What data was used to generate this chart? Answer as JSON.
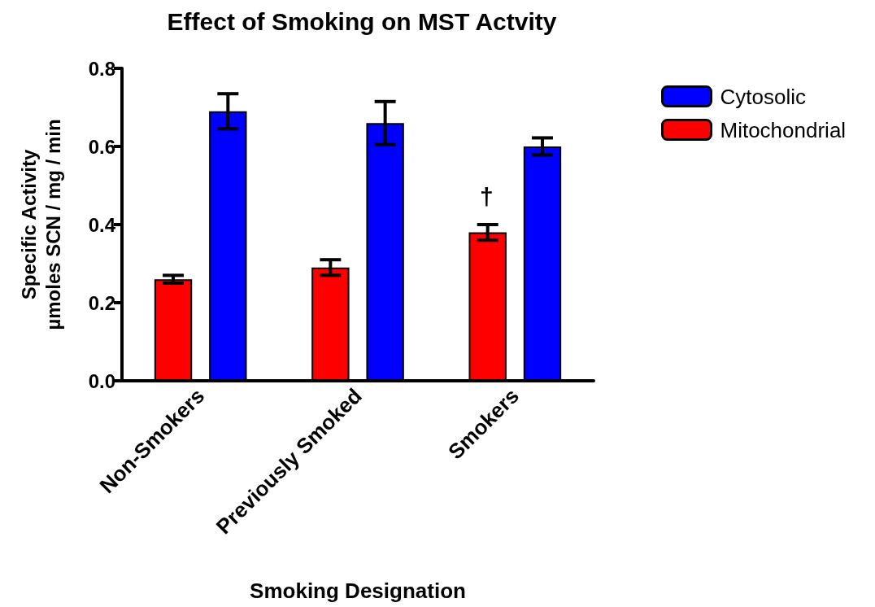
{
  "chart_data": {
    "type": "bar",
    "title": "Effect of Smoking on MST Actvity",
    "xlabel": "Smoking Designation",
    "ylabel": "Specific Activity\nµmoles SCN / mg / min",
    "categories": [
      "Non-Smokers",
      "Previously Smoked",
      "Smokers"
    ],
    "series": [
      {
        "name": "Mitochondrial",
        "color": "#ff0000",
        "values": [
          0.26,
          0.29,
          0.38
        ],
        "errors": [
          0.01,
          0.02,
          0.02
        ]
      },
      {
        "name": "Cytosolic",
        "color": "#0000ff",
        "values": [
          0.69,
          0.66,
          0.6
        ],
        "errors": [
          0.045,
          0.055,
          0.022
        ]
      }
    ],
    "ylim": [
      0,
      0.8
    ],
    "yticks": [
      {
        "value": 0,
        "label": "0.0"
      },
      {
        "value": 0.2,
        "label": "0.2"
      },
      {
        "value": 0.4,
        "label": "0.4"
      },
      {
        "value": 0.6,
        "label": "0.6"
      },
      {
        "value": 0.8,
        "label": "0.8"
      }
    ],
    "annotations": [
      "†"
    ],
    "grid": false,
    "legend": "top right"
  }
}
